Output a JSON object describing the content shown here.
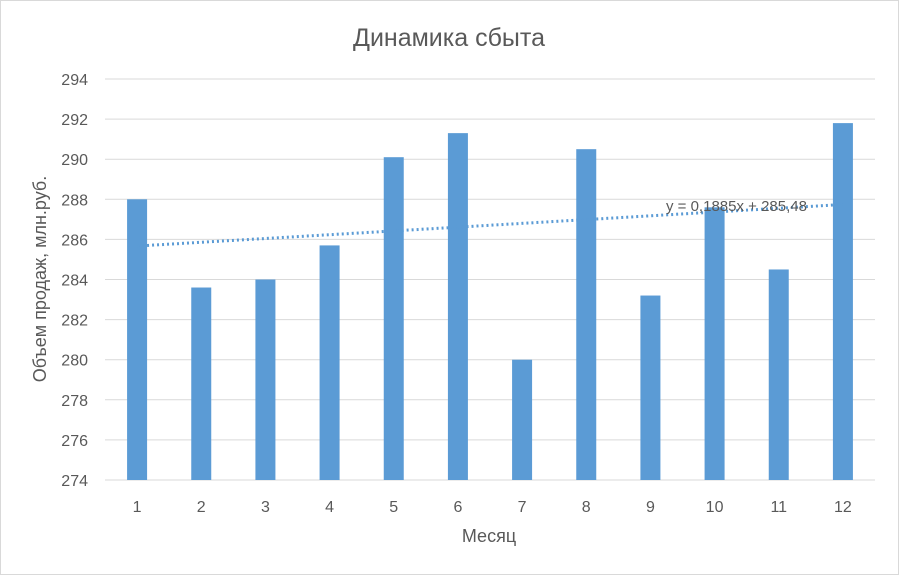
{
  "chart_data": {
    "type": "bar",
    "title": "Динамика сбыта",
    "xlabel": "Месяц",
    "ylabel": "Объем продаж, млн.руб.",
    "categories": [
      "1",
      "2",
      "3",
      "4",
      "5",
      "6",
      "7",
      "8",
      "9",
      "10",
      "11",
      "12"
    ],
    "series": [
      {
        "values": [
          288.0,
          283.6,
          284.0,
          285.7,
          290.1,
          291.3,
          280.0,
          290.5,
          283.2,
          287.6,
          284.5,
          291.8
        ]
      }
    ],
    "ylim": [
      274,
      294
    ],
    "yticks": [
      "274",
      "276",
      "278",
      "280",
      "282",
      "284",
      "286",
      "288",
      "290",
      "292",
      "294"
    ],
    "grid": true,
    "legend": "none",
    "trendline": {
      "type": "linear",
      "slope": 0.1885,
      "intercept": 285.48,
      "label": "y = 0,1885x + 285,48"
    },
    "colors": {
      "bar": "#5b9bd5",
      "trend": "#5b9bd5",
      "grid": "#d9d9d9",
      "text": "#595959"
    }
  }
}
